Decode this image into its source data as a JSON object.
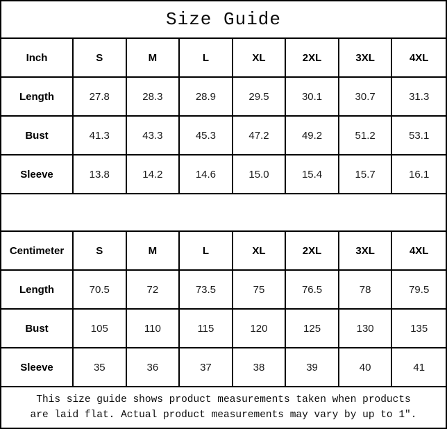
{
  "title": "Size Guide",
  "tables": [
    {
      "unit_label": "Inch",
      "sizes": [
        "S",
        "M",
        "L",
        "XL",
        "2XL",
        "3XL",
        "4XL"
      ],
      "rows": [
        {
          "label": "Length",
          "values": [
            "27.8",
            "28.3",
            "28.9",
            "29.5",
            "30.1",
            "30.7",
            "31.3"
          ]
        },
        {
          "label": "Bust",
          "values": [
            "41.3",
            "43.3",
            "45.3",
            "47.2",
            "49.2",
            "51.2",
            "53.1"
          ]
        },
        {
          "label": "Sleeve",
          "values": [
            "13.8",
            "14.2",
            "14.6",
            "15.0",
            "15.4",
            "15.7",
            "16.1"
          ]
        }
      ]
    },
    {
      "unit_label": "Centimeter",
      "sizes": [
        "S",
        "M",
        "L",
        "XL",
        "2XL",
        "3XL",
        "4XL"
      ],
      "rows": [
        {
          "label": "Length",
          "values": [
            "70.5",
            "72",
            "73.5",
            "75",
            "76.5",
            "78",
            "79.5"
          ]
        },
        {
          "label": "Bust",
          "values": [
            "105",
            "110",
            "115",
            "120",
            "125",
            "130",
            "135"
          ]
        },
        {
          "label": "Sleeve",
          "values": [
            "35",
            "36",
            "37",
            "38",
            "39",
            "40",
            "41"
          ]
        }
      ]
    }
  ],
  "footer": {
    "line1": "This size guide shows product measurements taken when products",
    "line2": "are laid flat. Actual product measurements may vary by up to 1″."
  }
}
